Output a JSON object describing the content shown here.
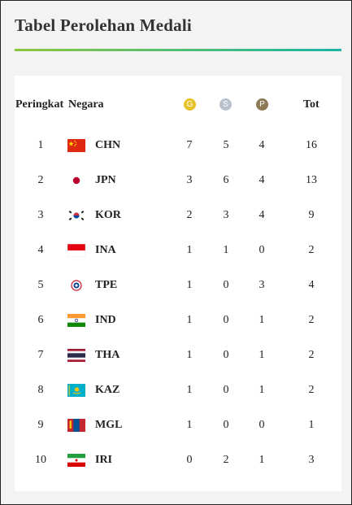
{
  "title": "Tabel Perolehan Medali",
  "header": {
    "rank": "Peringkat",
    "country": "Negara",
    "gold": "G",
    "silver": "S",
    "bronze": "P",
    "total": "Tot"
  },
  "colors": {
    "gold": "#e5c12a",
    "silver": "#b8c1cc",
    "bronze": "#8d7a55",
    "accent_start": "#8cc63f",
    "accent_end": "#19b5a6"
  },
  "rows": [
    {
      "rank": "1",
      "code": "CHN",
      "flag": "china-flag-icon",
      "gold": "7",
      "silver": "5",
      "bronze": "4",
      "total": "16"
    },
    {
      "rank": "2",
      "code": "JPN",
      "flag": "japan-flag-icon",
      "gold": "3",
      "silver": "6",
      "bronze": "4",
      "total": "13"
    },
    {
      "rank": "3",
      "code": "KOR",
      "flag": "korea-flag-icon",
      "gold": "2",
      "silver": "3",
      "bronze": "4",
      "total": "9"
    },
    {
      "rank": "4",
      "code": "INA",
      "flag": "indonesia-flag-icon",
      "gold": "1",
      "silver": "1",
      "bronze": "0",
      "total": "2"
    },
    {
      "rank": "5",
      "code": "TPE",
      "flag": "chinese-taipei-flag-icon",
      "gold": "1",
      "silver": "0",
      "bronze": "3",
      "total": "4"
    },
    {
      "rank": "6",
      "code": "IND",
      "flag": "india-flag-icon",
      "gold": "1",
      "silver": "0",
      "bronze": "1",
      "total": "2"
    },
    {
      "rank": "7",
      "code": "THA",
      "flag": "thailand-flag-icon",
      "gold": "1",
      "silver": "0",
      "bronze": "1",
      "total": "2"
    },
    {
      "rank": "8",
      "code": "KAZ",
      "flag": "kazakhstan-flag-icon",
      "gold": "1",
      "silver": "0",
      "bronze": "1",
      "total": "2"
    },
    {
      "rank": "9",
      "code": "MGL",
      "flag": "mongolia-flag-icon",
      "gold": "1",
      "silver": "0",
      "bronze": "0",
      "total": "1"
    },
    {
      "rank": "10",
      "code": "IRI",
      "flag": "iran-flag-icon",
      "gold": "0",
      "silver": "2",
      "bronze": "1",
      "total": "3"
    }
  ]
}
